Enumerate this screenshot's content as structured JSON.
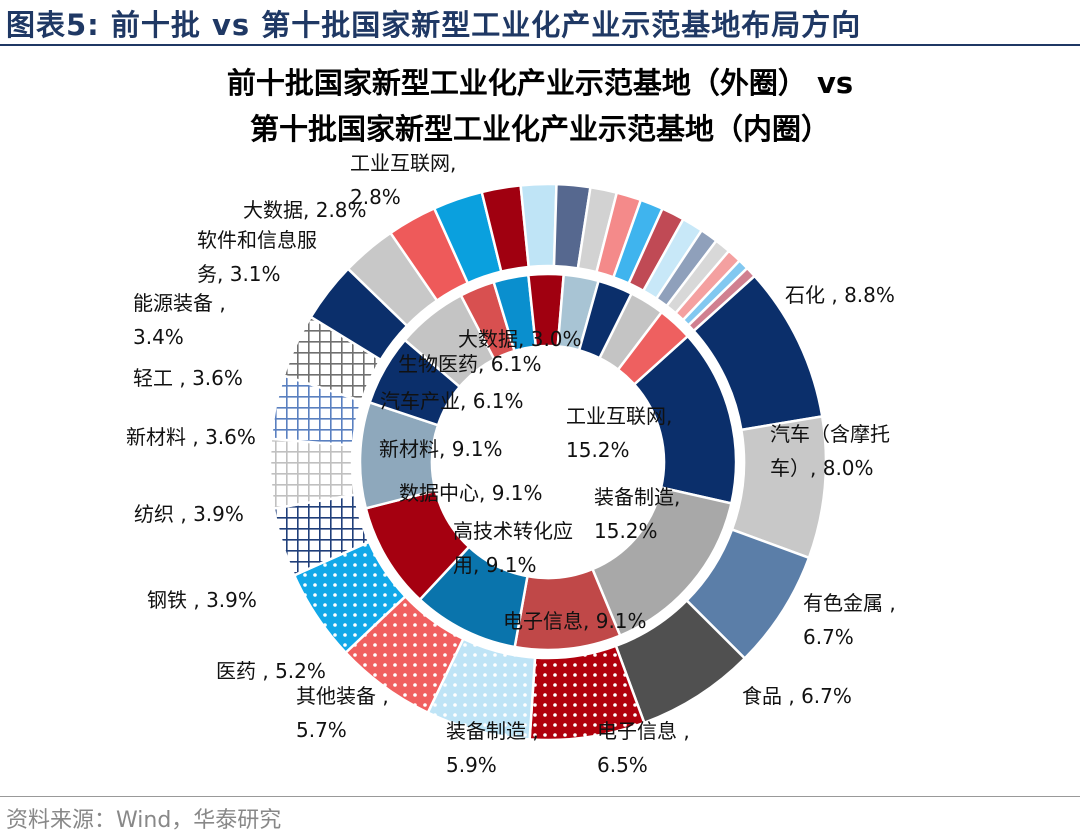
{
  "figure_title": "图表5:  前十批 vs 第十批国家新型工业化产业示范基地布局方向",
  "chart_title": [
    "前十批国家新型工业化产业示范基地（外圈） vs",
    "第十批国家新型工业化产业示范基地（内圈）"
  ],
  "source": "资料来源：Wind，华泰研究",
  "chart_data": {
    "type": "pie",
    "title": "前十批国家新型工业化产业示范基地（外圈） vs 第十批国家新型工业化产业示范基地（内圈）",
    "unit": "%",
    "outer_ring": {
      "name": "前十批国家新型工业化产业示范基地",
      "slices": [
        {
          "label": "石化",
          "value": 8.8,
          "text": [
            "石化 , 8.8%"
          ],
          "color": "#0b2f6b",
          "pattern": "solid"
        },
        {
          "label": "汽车（含摩托车）",
          "value": 8.0,
          "text": [
            "汽车（含摩托",
            "车）, 8.0%"
          ],
          "color": "#c8c8c8",
          "pattern": "solid"
        },
        {
          "label": "有色金属",
          "value": 6.7,
          "text": [
            "有色金属 ,",
            "6.7%"
          ],
          "color": "#5b7ea8",
          "pattern": "solid"
        },
        {
          "label": "食品",
          "value": 6.7,
          "text": [
            "食品 , 6.7%"
          ],
          "color": "#505050",
          "pattern": "solid"
        },
        {
          "label": "电子信息",
          "value": 6.5,
          "text": [
            "电子信息 ,",
            "6.5%"
          ],
          "color": "#b0000c",
          "pattern": "dots"
        },
        {
          "label": "装备制造",
          "value": 5.9,
          "text": [
            "装备制造 ,",
            "5.9%"
          ],
          "color": "#bfe4f6",
          "pattern": "dots"
        },
        {
          "label": "其他装备",
          "value": 5.7,
          "text": [
            "其他装备 ,",
            "5.7%"
          ],
          "color": "#f06060",
          "pattern": "dots"
        },
        {
          "label": "医药",
          "value": 5.2,
          "text": [
            "医药 , 5.2%"
          ],
          "color": "#12a8e8",
          "pattern": "dots"
        },
        {
          "label": "钢铁",
          "value": 3.9,
          "text": [
            "钢铁 , 3.9%"
          ],
          "color": "#203f7a",
          "pattern": "grid"
        },
        {
          "label": "纺织",
          "value": 3.9,
          "text": [
            "纺织 , 3.9%"
          ],
          "color": "#c0c0c0",
          "pattern": "grid"
        },
        {
          "label": "新材料",
          "value": 3.6,
          "text": [
            "新材料 , 3.6%"
          ],
          "color": "#5a80c0",
          "pattern": "grid"
        },
        {
          "label": "轻工",
          "value": 3.6,
          "text": [
            "轻工 , 3.6%"
          ],
          "color": "#707070",
          "pattern": "grid"
        },
        {
          "label": "能源装备",
          "value": 3.4,
          "text": [
            "能源装备 ,",
            "3.4%"
          ],
          "color": "#0b2f6b",
          "pattern": "solid"
        },
        {
          "label": "软件和信息服务",
          "value": 3.1,
          "text": [
            "软件和信息服",
            "务, 3.1%"
          ],
          "color": "#c8c8c8",
          "pattern": "solid"
        },
        {
          "label": "大数据",
          "value": 2.8,
          "text": [
            "大数据, 2.8%"
          ],
          "color": "#ee5a5a",
          "pattern": "solid"
        },
        {
          "label": "工业互联网",
          "value": 2.8,
          "text": [
            "工业互联网,",
            "2.8%"
          ],
          "color": "#0aa0de",
          "pattern": "solid"
        },
        {
          "label": "",
          "value": 2.2,
          "text": [],
          "color": "#a00010",
          "pattern": "solid"
        },
        {
          "label": "",
          "value": 2.0,
          "text": [],
          "color": "#bfe4f6",
          "pattern": "solid"
        },
        {
          "label": "",
          "value": 1.9,
          "text": [],
          "color": "#56688f",
          "pattern": "solid"
        },
        {
          "label": "",
          "value": 1.5,
          "text": [],
          "color": "#d2d2d2",
          "pattern": "solid"
        },
        {
          "label": "",
          "value": 1.4,
          "text": [],
          "color": "#f48a8a",
          "pattern": "solid"
        },
        {
          "label": "",
          "value": 1.3,
          "text": [],
          "color": "#3fb4ee",
          "pattern": "solid"
        },
        {
          "label": "",
          "value": 1.3,
          "text": [],
          "color": "#c04a55",
          "pattern": "solid"
        },
        {
          "label": "",
          "value": 1.2,
          "text": [],
          "color": "#c8e8f8",
          "pattern": "solid"
        },
        {
          "label": "",
          "value": 1.0,
          "text": [],
          "color": "#8fa0bb",
          "pattern": "solid"
        },
        {
          "label": "",
          "value": 0.9,
          "text": [],
          "color": "#d8d8d8",
          "pattern": "solid"
        },
        {
          "label": "",
          "value": 0.8,
          "text": [],
          "color": "#f4a0a0",
          "pattern": "solid"
        },
        {
          "label": "",
          "value": 0.6,
          "text": [],
          "color": "#82c8f0",
          "pattern": "solid"
        },
        {
          "label": "",
          "value": 0.6,
          "text": [],
          "color": "#d08090",
          "pattern": "solid"
        }
      ]
    },
    "inner_ring": {
      "name": "第十批国家新型工业化产业示范基地",
      "slices": [
        {
          "label": "工业互联网",
          "value": 15.2,
          "text": [
            "工业互联网,",
            "15.2%"
          ],
          "color": "#0b2f6b"
        },
        {
          "label": "装备制造",
          "value": 15.2,
          "text": [
            "装备制造,",
            "15.2%"
          ],
          "color": "#a8a8a8"
        },
        {
          "label": "电子信息",
          "value": 9.1,
          "text": [
            "电子信息, 9.1%"
          ],
          "color": "#c04848"
        },
        {
          "label": "高技术转化应用",
          "value": 9.1,
          "text": [
            "高技术转化应",
            "用, 9.1%"
          ],
          "color": "#0a74ac"
        },
        {
          "label": "数据中心",
          "value": 9.1,
          "text": [
            "数据中心, 9.1%"
          ],
          "color": "#a50010"
        },
        {
          "label": "新材料",
          "value": 9.1,
          "text": [
            "新材料, 9.1%"
          ],
          "color": "#8ea8bc"
        },
        {
          "label": "汽车产业",
          "value": 6.1,
          "text": [
            "汽车产业, 6.1%"
          ],
          "color": "#0b2f6b"
        },
        {
          "label": "生物医药",
          "value": 6.1,
          "text": [
            "生物医药, 6.1%"
          ],
          "color": "#c4c4c4"
        },
        {
          "label": "大数据",
          "value": 3.0,
          "text": [
            "大数据, 3.0%"
          ],
          "color": "#d85050"
        },
        {
          "label": "",
          "value": 3.0,
          "text": [],
          "color": "#0a8fce"
        },
        {
          "label": "",
          "value": 3.0,
          "text": [],
          "color": "#a00010"
        },
        {
          "label": "",
          "value": 3.0,
          "text": [],
          "color": "#a8c4d4"
        },
        {
          "label": "",
          "value": 3.0,
          "text": [],
          "color": "#0b2f6b"
        },
        {
          "label": "",
          "value": 3.0,
          "text": [],
          "color": "#c4c4c4"
        },
        {
          "label": "",
          "value": 3.0,
          "text": [],
          "color": "#ee6060"
        }
      ]
    }
  }
}
